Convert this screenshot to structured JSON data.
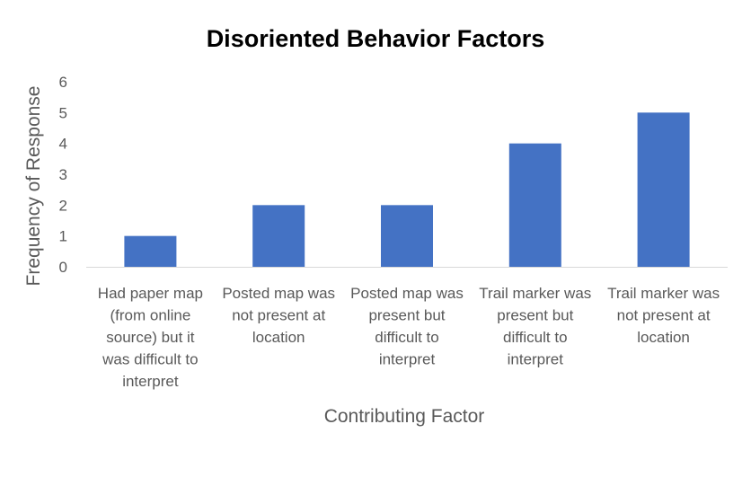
{
  "chart_data": {
    "type": "bar",
    "title": "Disoriented Behavior Factors",
    "xlabel": "Contributing Factor",
    "ylabel": "Frequency of Response",
    "ylim": [
      0,
      6
    ],
    "yticks": [
      "0",
      "1",
      "2",
      "3",
      "4",
      "5",
      "6"
    ],
    "categories": [
      [
        "Had paper map",
        "(from online",
        "source) but it",
        "was difficult to",
        "interpret"
      ],
      [
        "Posted map was",
        "not present at",
        "location"
      ],
      [
        "Posted map was",
        "present but",
        "difficult to",
        "interpret"
      ],
      [
        "Trail marker was",
        "present but",
        "difficult to",
        "interpret"
      ],
      [
        "Trail marker was",
        "not present at",
        "location"
      ]
    ],
    "values": [
      1,
      2,
      2,
      4,
      5
    ],
    "grid": false,
    "legend": "none"
  },
  "colors": {
    "bar": "#4472C4",
    "axis": "#D9D9D9",
    "text": "#595959",
    "title": "#000000"
  }
}
